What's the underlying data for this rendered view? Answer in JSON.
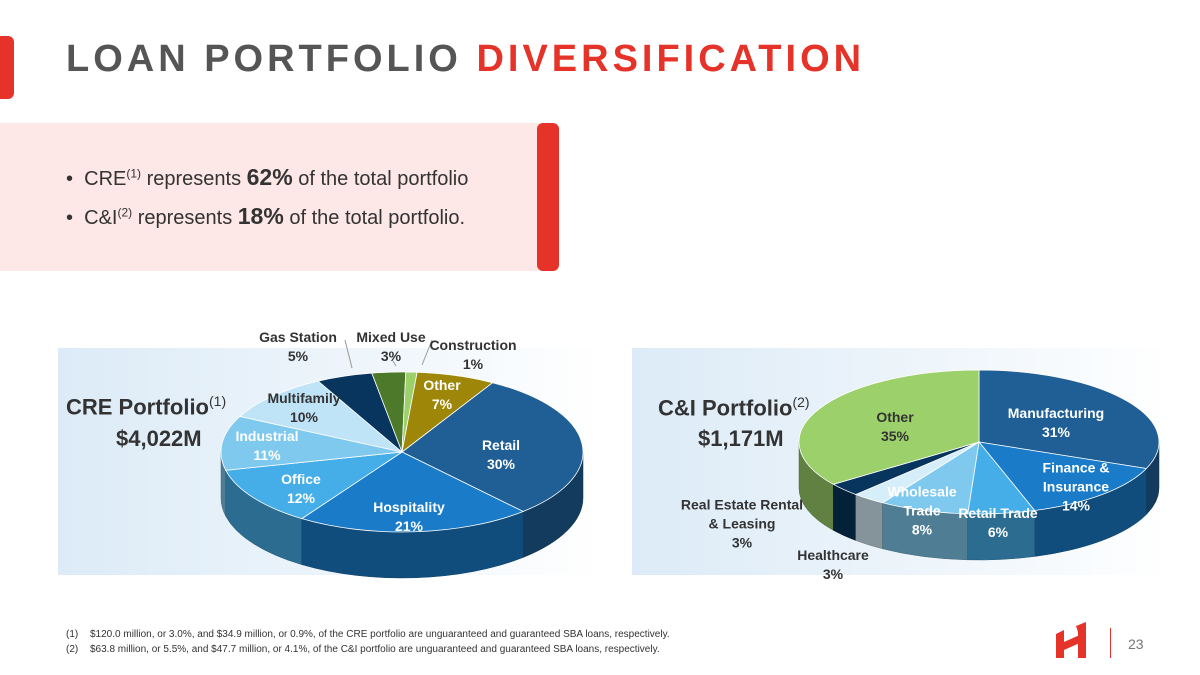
{
  "header": {
    "title_part1": "LOAN PORTFOLIO",
    "title_part2": "DIVERSIFICATION"
  },
  "bullets": [
    {
      "prefix": "CRE",
      "sup": "(1)",
      "mid": " represents ",
      "value": "62%",
      "suffix": " of the total portfolio"
    },
    {
      "prefix": "C&I",
      "sup": "(2)",
      "mid": " represents ",
      "value": "18%",
      "suffix": " of the total portfolio."
    }
  ],
  "cre_panel": {
    "name": "CRE Portfolio",
    "sup": "(1)",
    "total": "$4,022M"
  },
  "ci_panel": {
    "name": "C&I Portfolio",
    "sup": "(2)",
    "total": "$1,171M"
  },
  "chart_data": [
    {
      "type": "pie",
      "title": "CRE Portfolio",
      "total": "$4,022M",
      "slices": [
        {
          "label": "Retail",
          "value": 30,
          "display": "30%",
          "color": "#1f5f96"
        },
        {
          "label": "Hospitality",
          "value": 21,
          "display": "21%",
          "color": "#1a7cc9"
        },
        {
          "label": "Office",
          "value": 12,
          "display": "12%",
          "color": "#45aee8"
        },
        {
          "label": "Industrial",
          "value": 11,
          "display": "11%",
          "color": "#7fc9ef"
        },
        {
          "label": "Multifamily",
          "value": 10,
          "display": "10%",
          "color": "#bfe3f7"
        },
        {
          "label": "Gas Station",
          "value": 5,
          "display": "5%",
          "color": "#07355d"
        },
        {
          "label": "Mixed Use",
          "value": 3,
          "display": "3%",
          "color": "#4c7a2a"
        },
        {
          "label": "Construction",
          "value": 1,
          "display": "1%",
          "color": "#9bd06b"
        },
        {
          "label": "Other",
          "value": 7,
          "display": "7%",
          "color": "#9e8708"
        }
      ]
    },
    {
      "type": "pie",
      "title": "C&I Portfolio",
      "total": "$1,171M",
      "slices": [
        {
          "label": "Manufacturing",
          "value": 31,
          "display": "31%",
          "color": "#1f5f96"
        },
        {
          "label": "Finance & Insurance",
          "value": 14,
          "display": "14%",
          "color": "#1a7cc9"
        },
        {
          "label": "Retail Trade",
          "value": 6,
          "display": "6%",
          "color": "#45aee8"
        },
        {
          "label": "Wholesale Trade",
          "value": 8,
          "display": "8%",
          "color": "#7fc9ef"
        },
        {
          "label": "Healthcare",
          "value": 3,
          "display": "3%",
          "color": "#d6eefa"
        },
        {
          "label": "Real Estate Rental & Leasing",
          "value": 3,
          "display": "3%",
          "color": "#07355d"
        },
        {
          "label": "Other",
          "value": 35,
          "display": "35%",
          "color": "#9bd06b"
        }
      ]
    }
  ],
  "footnotes": [
    {
      "num": "(1)",
      "text": "$120.0 million, or 3.0%, and $34.9 million, or 0.9%, of the CRE portfolio are unguaranteed and guaranteed SBA loans, respectively."
    },
    {
      "num": "(2)",
      "text": "$63.8 million, or 5.5%, and $47.7 million, or 4.1%, of the C&I portfolio are unguaranteed and guaranteed SBA loans, respectively."
    }
  ],
  "page_number": "23"
}
